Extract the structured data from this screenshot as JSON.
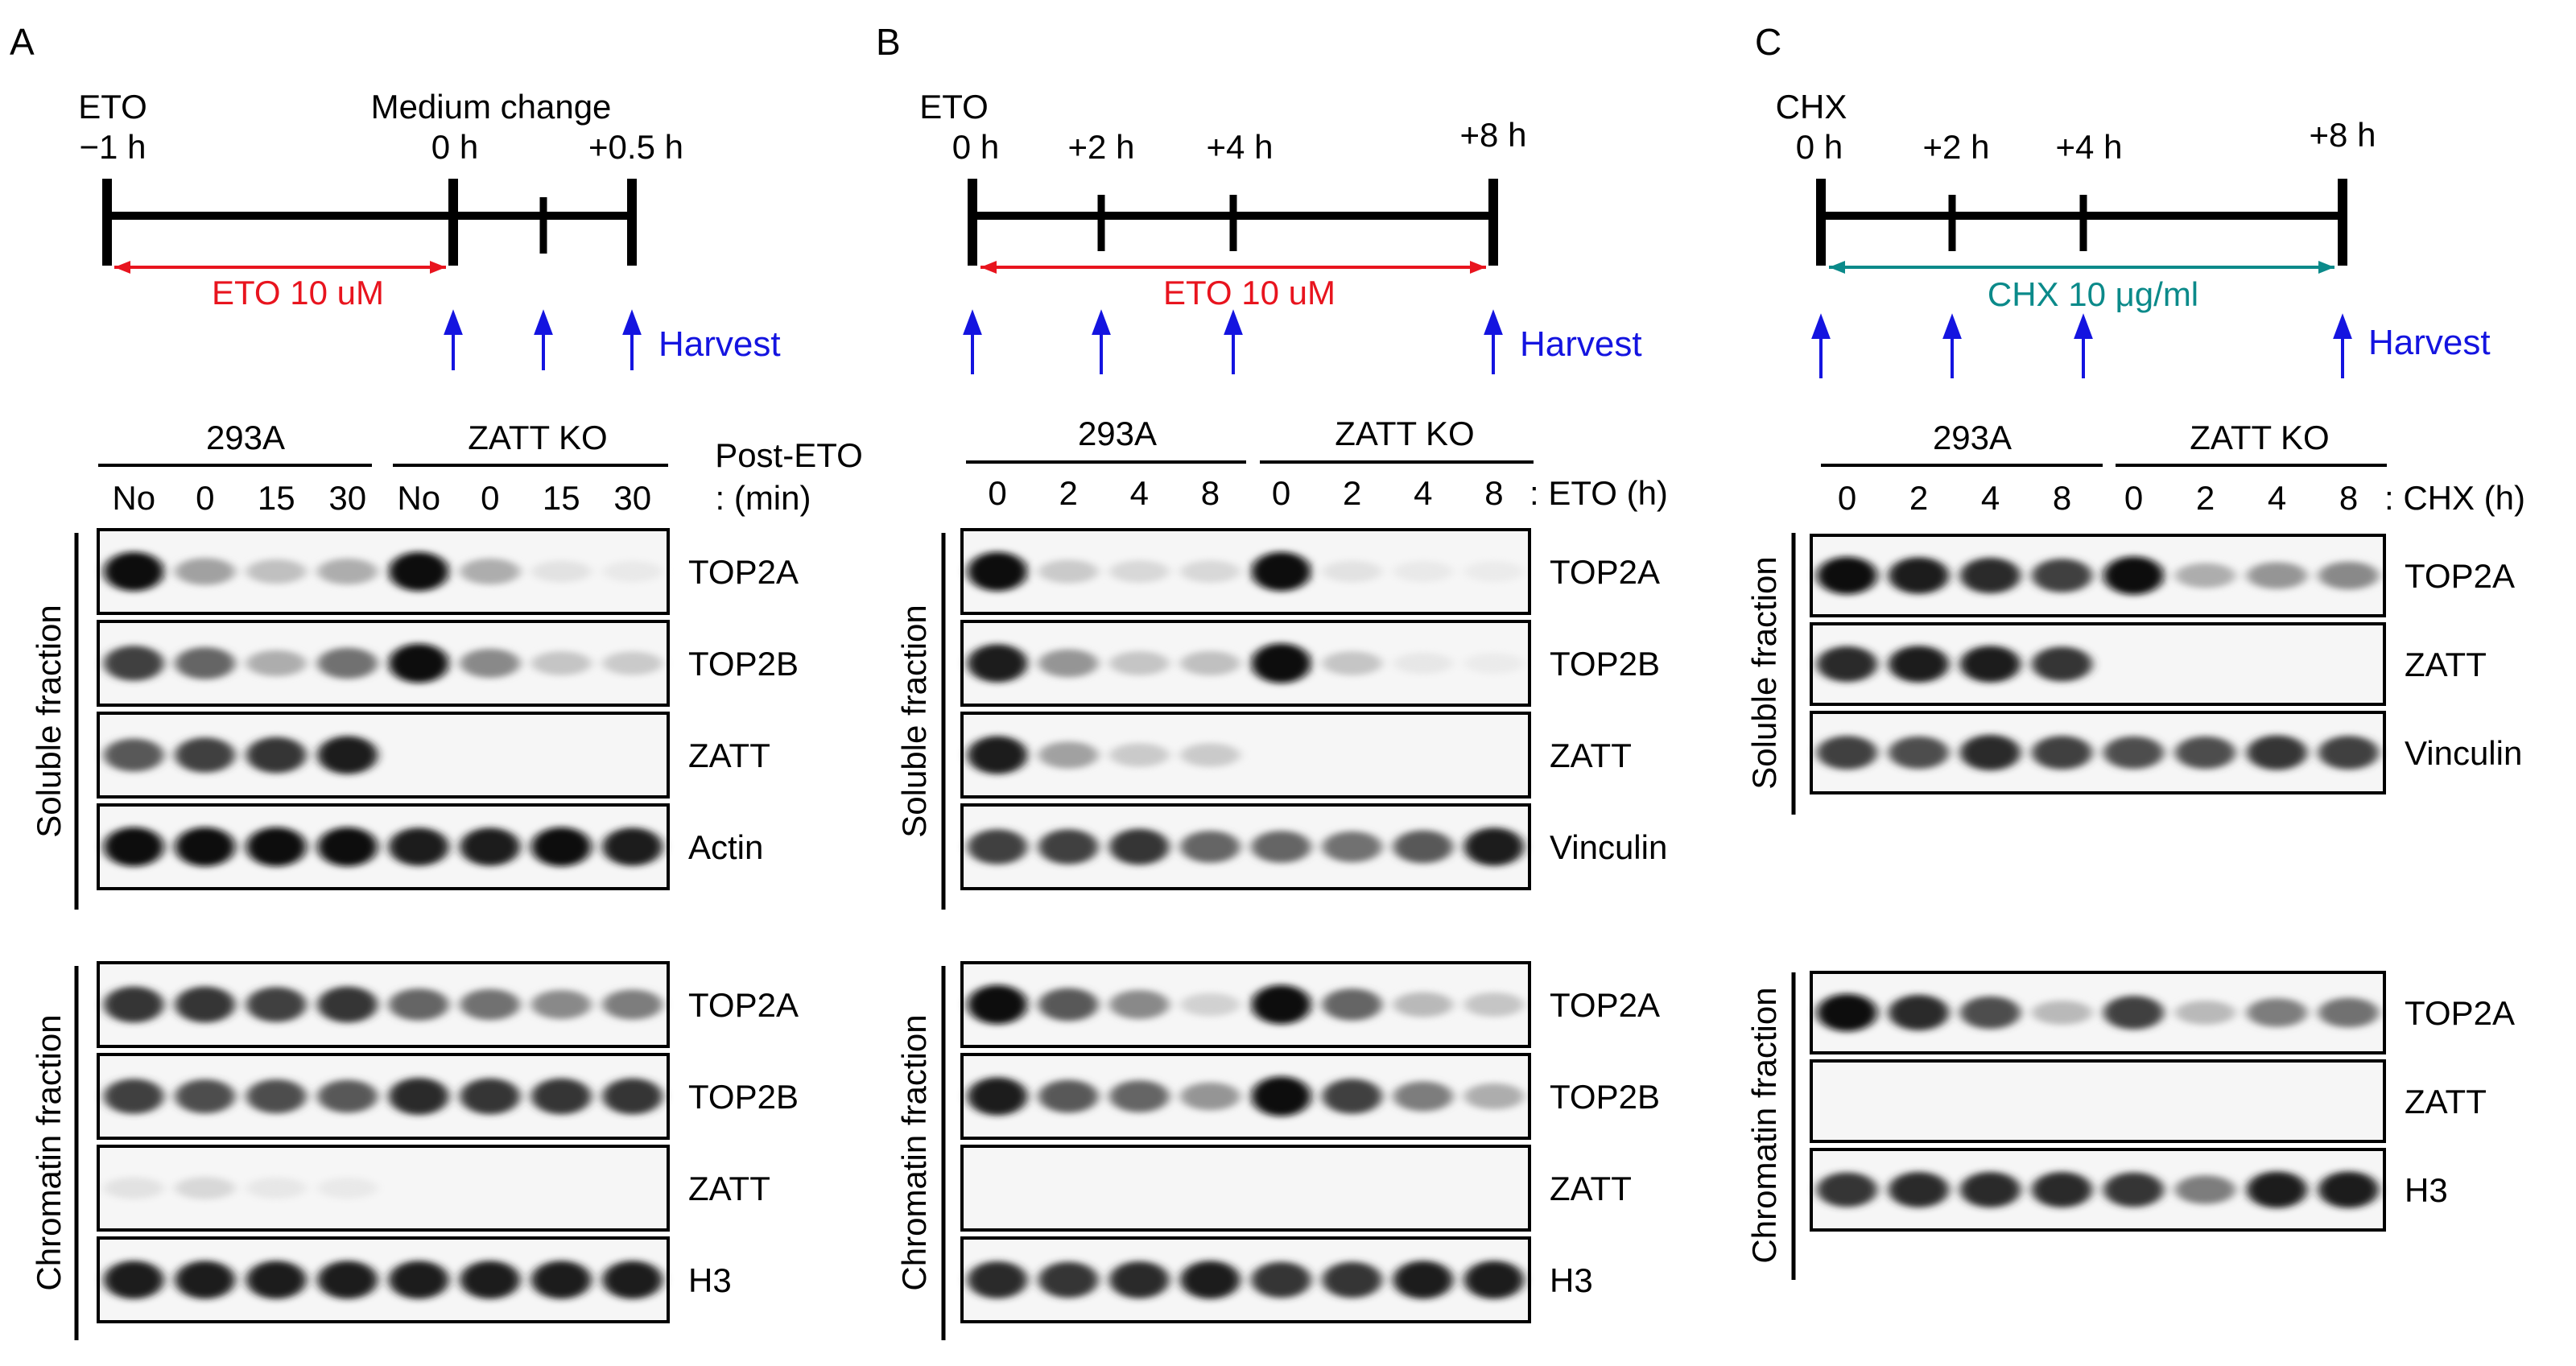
{
  "colors": {
    "eto": "#e8141e",
    "harvest": "#1414e0",
    "chx": "#0b8a8a",
    "ink": "#000000"
  },
  "panels": [
    {
      "letter": "A",
      "timeline": {
        "labels": [
          "ETO",
          "−1 h",
          "Medium change",
          "0 h",
          "+0.5 h"
        ],
        "range_label": "ETO 10 uM",
        "harvest": "Harvest"
      },
      "groups": [
        "293A",
        "ZATT KO"
      ],
      "condition_label": "Post-ETO",
      "condition_unit": ": (min)",
      "lanes": [
        "No",
        "0",
        "15",
        "30",
        "No",
        "0",
        "15",
        "30"
      ],
      "soluble": {
        "label": "Soluble fraction",
        "blots": [
          "TOP2A",
          "TOP2B",
          "ZATT",
          "Actin"
        ]
      },
      "chromatin": {
        "label": "Chromatin fraction",
        "blots": [
          "TOP2A",
          "TOP2B",
          "ZATT",
          "H3"
        ]
      }
    },
    {
      "letter": "B",
      "timeline": {
        "labels": [
          "ETO",
          "0 h",
          "+2 h",
          "+4 h",
          "+8 h"
        ],
        "range_label": "ETO 10 uM",
        "harvest": "Harvest"
      },
      "groups": [
        "293A",
        "ZATT KO"
      ],
      "condition_label": ": ETO (h)",
      "lanes": [
        "0",
        "2",
        "4",
        "8",
        "0",
        "2",
        "4",
        "8"
      ],
      "soluble": {
        "label": "Soluble fraction",
        "blots": [
          "TOP2A",
          "TOP2B",
          "ZATT",
          "Vinculin"
        ]
      },
      "chromatin": {
        "label": "Chromatin fraction",
        "blots": [
          "TOP2A",
          "TOP2B",
          "ZATT",
          "H3"
        ]
      }
    },
    {
      "letter": "C",
      "timeline": {
        "labels": [
          "CHX",
          "0 h",
          "+2 h",
          "+4 h",
          "+8 h"
        ],
        "range_label": "CHX 10 μg/ml",
        "harvest": "Harvest"
      },
      "groups": [
        "293A",
        "ZATT KO"
      ],
      "condition_label": ": CHX (h)",
      "lanes": [
        "0",
        "2",
        "4",
        "8",
        "0",
        "2",
        "4",
        "8"
      ],
      "soluble": {
        "label": "Soluble fraction",
        "blots": [
          "TOP2A",
          "ZATT",
          "Vinculin"
        ]
      },
      "chromatin": {
        "label": "Chromatin fraction",
        "blots": [
          "TOP2A",
          "ZATT",
          "H3"
        ]
      }
    }
  ],
  "band_intensity": {
    "A": {
      "soluble": [
        [
          0.95,
          0.35,
          0.22,
          0.3,
          0.95,
          0.3,
          0.08,
          0.05
        ],
        [
          0.75,
          0.6,
          0.3,
          0.55,
          0.95,
          0.45,
          0.2,
          0.18
        ],
        [
          0.65,
          0.75,
          0.8,
          0.9,
          0.0,
          0.0,
          0.0,
          0.0
        ],
        [
          0.95,
          0.95,
          0.95,
          0.95,
          0.9,
          0.9,
          0.95,
          0.9
        ]
      ],
      "chromatin": [
        [
          0.8,
          0.8,
          0.75,
          0.8,
          0.6,
          0.55,
          0.45,
          0.5
        ],
        [
          0.75,
          0.7,
          0.7,
          0.65,
          0.85,
          0.8,
          0.8,
          0.8
        ],
        [
          0.08,
          0.12,
          0.06,
          0.05,
          0.0,
          0.0,
          0.0,
          0.0
        ],
        [
          0.9,
          0.9,
          0.9,
          0.9,
          0.9,
          0.9,
          0.9,
          0.9
        ]
      ]
    },
    "B": {
      "soluble": [
        [
          0.95,
          0.18,
          0.12,
          0.12,
          0.95,
          0.08,
          0.05,
          0.04
        ],
        [
          0.9,
          0.4,
          0.2,
          0.22,
          0.98,
          0.2,
          0.06,
          0.04
        ],
        [
          0.9,
          0.35,
          0.18,
          0.18,
          0.0,
          0.0,
          0.0,
          0.0
        ],
        [
          0.75,
          0.75,
          0.8,
          0.6,
          0.6,
          0.55,
          0.65,
          0.9
        ]
      ],
      "chromatin": [
        [
          0.95,
          0.65,
          0.45,
          0.15,
          0.95,
          0.6,
          0.25,
          0.2
        ],
        [
          0.9,
          0.65,
          0.6,
          0.4,
          0.98,
          0.75,
          0.5,
          0.3
        ],
        [
          0.0,
          0.0,
          0.0,
          0.0,
          0.0,
          0.0,
          0.0,
          0.0
        ],
        [
          0.85,
          0.8,
          0.85,
          0.9,
          0.8,
          0.8,
          0.9,
          0.9
        ]
      ]
    },
    "C": {
      "soluble": [
        [
          0.95,
          0.9,
          0.85,
          0.75,
          0.98,
          0.3,
          0.4,
          0.45
        ],
        [
          0.85,
          0.9,
          0.9,
          0.8,
          0.0,
          0.0,
          0.0,
          0.0
        ],
        [
          0.75,
          0.7,
          0.85,
          0.75,
          0.7,
          0.7,
          0.8,
          0.75
        ]
      ],
      "chromatin": [
        [
          0.95,
          0.85,
          0.7,
          0.25,
          0.75,
          0.25,
          0.5,
          0.55
        ],
        [
          0.0,
          0.0,
          0.0,
          0.0,
          0.0,
          0.0,
          0.0,
          0.0
        ],
        [
          0.8,
          0.85,
          0.85,
          0.85,
          0.8,
          0.5,
          0.9,
          0.9
        ]
      ]
    }
  }
}
